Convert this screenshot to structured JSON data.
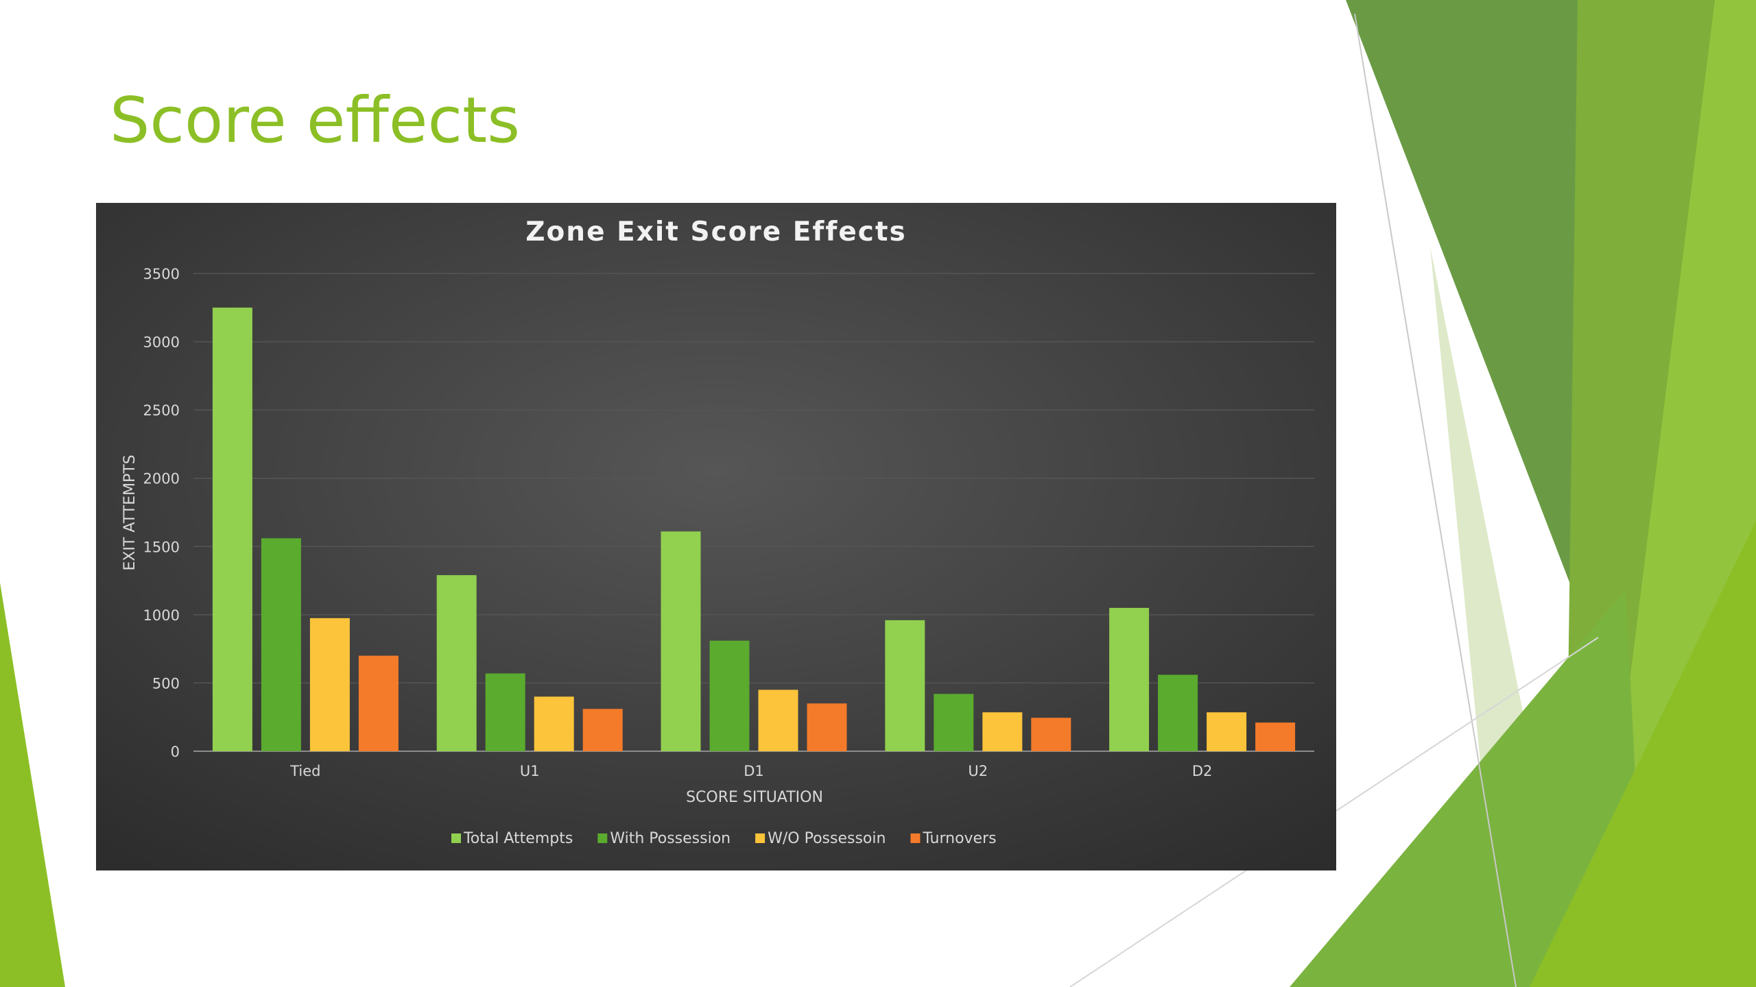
{
  "slide": {
    "title": "Score effects",
    "title_color": "#8cbf26"
  },
  "colors": {
    "panel_dark": "#2d2d2d",
    "panel_light": "#565656",
    "decor_greens": [
      "#6a9b44",
      "#7fae3a",
      "#8cbf26",
      "#a6cc56",
      "#cfe4a8",
      "#4c8a22"
    ]
  },
  "chart_data": {
    "type": "bar",
    "title": "Zone Exit Score Effects",
    "xlabel": "SCORE SITUATION",
    "ylabel": "EXIT ATTEMPTS",
    "ylim": [
      0,
      3500
    ],
    "yticks": [
      "0",
      "500",
      "1000",
      "1500",
      "2000",
      "2500",
      "3000",
      "3500"
    ],
    "grid": true,
    "legend_position": "bottom",
    "categories": [
      "Tied",
      "U1",
      "D1",
      "U2",
      "D2"
    ],
    "series": [
      {
        "name": "Total Attempts",
        "color": "#92d050",
        "values": [
          3250,
          1290,
          1610,
          960,
          1050
        ]
      },
      {
        "name": "With Possession",
        "color": "#5aab2e",
        "values": [
          1560,
          570,
          810,
          420,
          560
        ]
      },
      {
        "name": "W/O Possessoin",
        "color": "#fcc43a",
        "values": [
          975,
          400,
          450,
          285,
          285
        ]
      },
      {
        "name": "Turnovers",
        "color": "#f47b2a",
        "values": [
          700,
          310,
          350,
          245,
          210
        ]
      }
    ]
  }
}
